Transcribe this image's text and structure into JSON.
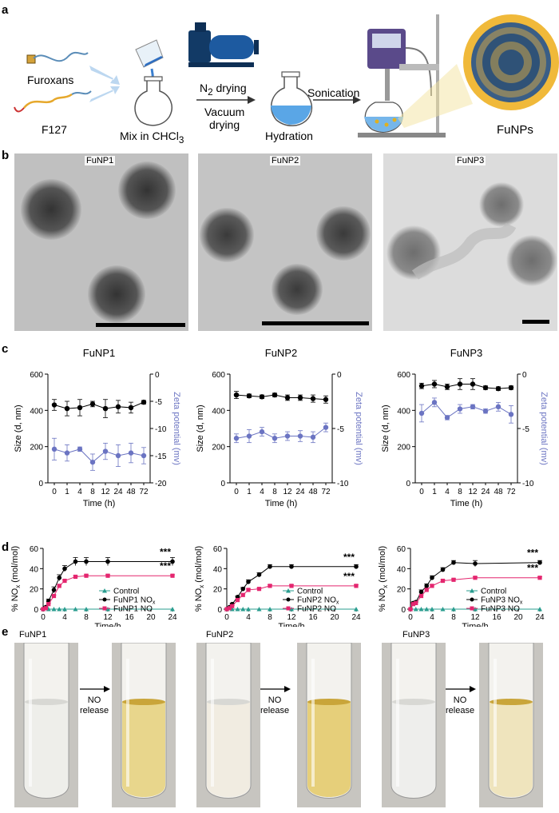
{
  "panels": {
    "a": {
      "label": "a",
      "furoxans": "Furoxans",
      "f127": "F127",
      "mix_pre": "Mix in CHCl",
      "mix_sub": "3",
      "n2_pre": "N",
      "n2_sub": "2",
      "n2_post": " drying",
      "vacuum_1": "Vacuum",
      "vacuum_2": "drying",
      "hydration": "Hydration",
      "sonication": "Sonication",
      "funps": "FuNPs"
    },
    "b": {
      "label": "b",
      "images": [
        {
          "title": "FuNP1"
        },
        {
          "title": "FuNP2"
        },
        {
          "title": "FuNP3"
        }
      ]
    },
    "c": {
      "label": "c"
    },
    "d": {
      "label": "d"
    },
    "e": {
      "label": "e",
      "titles": [
        "FuNP1",
        "FuNP2",
        "FuNP3"
      ],
      "arrow_text_1": "NO",
      "arrow_text_2": "release",
      "tubes": [
        {
          "color": "#eeeeea",
          "state": "before"
        },
        {
          "color": "#e8d68c",
          "state": "after"
        },
        {
          "color": "#f1ece1",
          "state": "before"
        },
        {
          "color": "#e6cf7a",
          "state": "after"
        },
        {
          "color": "#eeeeec",
          "state": "before"
        },
        {
          "color": "#efe4bd",
          "state": "after"
        }
      ]
    }
  },
  "chart_data": [
    {
      "type": "line",
      "title": "FuNP1",
      "xlabel": "Time (h)",
      "ylabel": "Size (d, nm)",
      "y2label": "Zeta potential (mv)",
      "categories": [
        "0",
        "1",
        "4",
        "8",
        "12",
        "24",
        "48",
        "72"
      ],
      "ylim": [
        0,
        600
      ],
      "y_ticks": [
        "0",
        "200",
        "400",
        "600"
      ],
      "y2lim": [
        -20,
        0
      ],
      "y2_ticks": [
        "-20",
        "-15",
        "-10",
        "-5",
        "0"
      ],
      "series": [
        {
          "axis": "left",
          "color": "#000000",
          "values": [
            430,
            410,
            415,
            435,
            410,
            420,
            415,
            445
          ],
          "errors": [
            30,
            40,
            45,
            15,
            50,
            35,
            30,
            10
          ]
        },
        {
          "axis": "right",
          "color": "#6b74c2",
          "values": [
            -13.8,
            -14.5,
            -13.8,
            -16.2,
            -14.2,
            -15.0,
            -14.5,
            -15.0
          ],
          "errors": [
            2.0,
            1.5,
            0.4,
            1.5,
            1.5,
            2.0,
            1.8,
            1.5
          ]
        }
      ]
    },
    {
      "type": "line",
      "title": "FuNP2",
      "xlabel": "Time (h)",
      "ylabel": "Size (d, nm)",
      "y2label": "Zeta potential (mv)",
      "categories": [
        "0",
        "1",
        "4",
        "8",
        "12",
        "24",
        "48",
        "72"
      ],
      "ylim": [
        0,
        600
      ],
      "y_ticks": [
        "0",
        "200",
        "400",
        "600"
      ],
      "y2lim": [
        -10,
        0
      ],
      "y2_ticks": [
        "-10",
        "-5",
        "0"
      ],
      "series": [
        {
          "axis": "left",
          "color": "#000000",
          "values": [
            485,
            480,
            475,
            485,
            470,
            470,
            465,
            460
          ],
          "errors": [
            20,
            10,
            10,
            10,
            15,
            15,
            20,
            20
          ]
        },
        {
          "axis": "right",
          "color": "#6b74c2",
          "values": [
            -5.9,
            -5.7,
            -5.3,
            -5.9,
            -5.7,
            -5.7,
            -5.8,
            -4.9
          ],
          "errors": [
            0.4,
            0.6,
            0.4,
            0.4,
            0.4,
            0.5,
            0.5,
            0.4
          ]
        }
      ]
    },
    {
      "type": "line",
      "title": "FuNP3",
      "xlabel": "Time (h)",
      "ylabel": "Size (d, nm)",
      "y2label": "Zeta potential (mv)",
      "categories": [
        "0",
        "1",
        "4",
        "8",
        "12",
        "24",
        "48",
        "72"
      ],
      "ylim": [
        0,
        600
      ],
      "y_ticks": [
        "0",
        "200",
        "400",
        "600"
      ],
      "y2lim": [
        -10,
        0
      ],
      "y2_ticks": [
        "-10",
        "-5",
        "0"
      ],
      "series": [
        {
          "axis": "left",
          "color": "#000000",
          "values": [
            535,
            545,
            530,
            545,
            545,
            525,
            520,
            525
          ],
          "errors": [
            15,
            20,
            15,
            30,
            30,
            10,
            10,
            10
          ]
        },
        {
          "axis": "right",
          "color": "#6b74c2",
          "values": [
            -3.6,
            -2.6,
            -4.0,
            -3.2,
            -3.0,
            -3.4,
            -3.0,
            -3.7
          ],
          "errors": [
            0.8,
            0.4,
            0.2,
            0.4,
            0.2,
            0.2,
            0.4,
            0.8
          ]
        }
      ]
    },
    {
      "type": "line",
      "xlabel": "Time/h",
      "ylabel": "% NO",
      "ylabel_sub": "x",
      "ylabel_post": " (mol/mol)",
      "xlim": [
        0,
        24
      ],
      "x_ticks": [
        0,
        4,
        8,
        12,
        16,
        20,
        24
      ],
      "ylim": [
        0,
        60
      ],
      "y_ticks": [
        0,
        20,
        40,
        60
      ],
      "annotations": [
        "***",
        "***"
      ],
      "legend": "center-right",
      "series": [
        {
          "name": "Control",
          "color": "#2a9d8f",
          "marker": "triangle",
          "x": [
            0,
            1,
            2,
            3,
            4,
            6,
            8,
            12,
            24
          ],
          "y": [
            0,
            0,
            0,
            0,
            0,
            0,
            0,
            0,
            0
          ]
        },
        {
          "name": "FuNP1 NO",
          "name_sub": "x",
          "color": "#000000",
          "marker": "circle",
          "x": [
            0,
            0.5,
            1,
            2,
            3,
            4,
            6,
            8,
            12,
            24
          ],
          "y": [
            0,
            2,
            8,
            19,
            31,
            40,
            47,
            47,
            47,
            47
          ],
          "errors": [
            0,
            1,
            2,
            3,
            3,
            3,
            4,
            4,
            4,
            4
          ]
        },
        {
          "name": "FuNP1 NO",
          "color": "#e4266f",
          "marker": "square",
          "x": [
            0,
            0.5,
            1,
            2,
            3,
            4,
            6,
            8,
            12,
            24
          ],
          "y": [
            0,
            1,
            5,
            13,
            23,
            28,
            32,
            33,
            33,
            33
          ],
          "errors": [
            0,
            0.5,
            1,
            1,
            1,
            1,
            1,
            1,
            1,
            1
          ]
        }
      ]
    },
    {
      "type": "line",
      "xlabel": "Time/h",
      "ylabel": "% NO",
      "ylabel_sub": "x",
      "ylabel_post": " (mol/mol)",
      "xlim": [
        0,
        24
      ],
      "x_ticks": [
        0,
        4,
        8,
        12,
        16,
        20,
        24
      ],
      "ylim": [
        0,
        60
      ],
      "y_ticks": [
        0,
        20,
        40,
        60
      ],
      "annotations": [
        "***",
        "***"
      ],
      "legend": "center-right",
      "series": [
        {
          "name": "Control",
          "color": "#2a9d8f",
          "marker": "triangle",
          "x": [
            0,
            1,
            2,
            3,
            4,
            6,
            8,
            12,
            24
          ],
          "y": [
            0,
            0,
            0,
            0,
            0,
            0,
            0,
            0,
            0
          ]
        },
        {
          "name": "FuNP2 NO",
          "name_sub": "x",
          "color": "#000000",
          "marker": "circle",
          "x": [
            0,
            0.5,
            1,
            2,
            3,
            4,
            6,
            8,
            12,
            24
          ],
          "y": [
            0,
            2,
            5,
            12,
            20,
            27,
            34,
            42,
            42,
            42
          ],
          "errors": [
            0,
            0.5,
            1,
            1,
            1.5,
            2,
            2,
            2,
            2,
            2
          ]
        },
        {
          "name": "FuNP2 NO",
          "color": "#e4266f",
          "marker": "square",
          "x": [
            0,
            0.5,
            1,
            2,
            3,
            4,
            6,
            8,
            12,
            24
          ],
          "y": [
            0,
            1,
            3,
            9,
            14,
            19,
            20,
            23,
            23,
            23
          ],
          "errors": [
            0,
            0.5,
            0.5,
            1,
            1,
            1,
            1,
            1,
            1,
            1
          ]
        }
      ]
    },
    {
      "type": "line",
      "xlabel": "Time/h",
      "ylabel": "% NO",
      "ylabel_sub": "x",
      "ylabel_post": " (mol/mol)",
      "xlim": [
        0,
        24
      ],
      "x_ticks": [
        0,
        4,
        8,
        12,
        16,
        20,
        24
      ],
      "ylim": [
        0,
        60
      ],
      "y_ticks": [
        0,
        20,
        40,
        60
      ],
      "annotations": [
        "***",
        "***"
      ],
      "legend": "center-right",
      "series": [
        {
          "name": "Control",
          "color": "#2a9d8f",
          "marker": "triangle",
          "x": [
            0,
            1,
            2,
            3,
            4,
            6,
            8,
            12,
            24
          ],
          "y": [
            0,
            0,
            0,
            0,
            0,
            0,
            0,
            0,
            0
          ]
        },
        {
          "name": "FuNP3 NO",
          "name_sub": "x",
          "color": "#000000",
          "marker": "circle",
          "x": [
            0,
            0.5,
            1,
            2,
            3,
            4,
            6,
            8,
            12,
            24
          ],
          "y": [
            0,
            6,
            7,
            17,
            23,
            31,
            39,
            46,
            45,
            46
          ],
          "errors": [
            0,
            1,
            1,
            2,
            2,
            2,
            2,
            2,
            3,
            2
          ]
        },
        {
          "name": "FuNP3 NO",
          "color": "#e4266f",
          "marker": "square",
          "x": [
            0,
            0.5,
            1,
            2,
            3,
            4,
            6,
            8,
            12,
            24
          ],
          "y": [
            0,
            5,
            6,
            13,
            19,
            23,
            28,
            29,
            31,
            31
          ],
          "errors": [
            0,
            0.5,
            0.5,
            1,
            1,
            1,
            1,
            1,
            1,
            1
          ]
        }
      ]
    }
  ]
}
